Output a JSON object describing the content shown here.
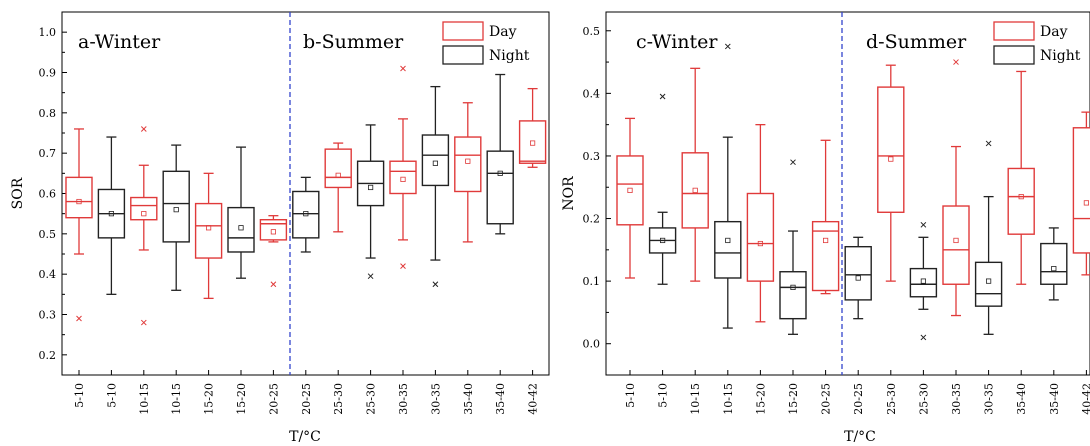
{
  "legend_labels": [
    "Day",
    "Night"
  ],
  "chart_data": [
    {
      "type": "box",
      "ylabel": "SOR",
      "xlabel": "T/°C",
      "ylim": [
        0.15,
        1.05
      ],
      "yticks": [
        "0.2",
        "0.3",
        "0.4",
        "0.5",
        "0.6",
        "0.7",
        "0.8",
        "0.9",
        "1.0"
      ],
      "panels": [
        "a-Winter",
        "b-Summer"
      ],
      "categories": [
        "5-10",
        "5-10",
        "10-15",
        "10-15",
        "15-20",
        "15-20",
        "20-25",
        "20-25",
        "25-30",
        "25-30",
        "30-35",
        "30-35",
        "35-40",
        "35-40",
        "40-42"
      ],
      "period": [
        "Day",
        "Night",
        "Day",
        "Night",
        "Day",
        "Night",
        "Day",
        "Night",
        "Day",
        "Night",
        "Day",
        "Night",
        "Day",
        "Night",
        "Day"
      ],
      "boxes": [
        {
          "min": 0.45,
          "q1": 0.54,
          "median": 0.58,
          "q3": 0.64,
          "max": 0.76,
          "mean": 0.58,
          "outliers": [
            0.29
          ]
        },
        {
          "min": 0.35,
          "q1": 0.49,
          "median": 0.55,
          "q3": 0.61,
          "max": 0.74,
          "mean": 0.55,
          "outliers": []
        },
        {
          "min": 0.46,
          "q1": 0.535,
          "median": 0.57,
          "q3": 0.59,
          "max": 0.67,
          "mean": 0.55,
          "outliers": [
            0.76,
            0.28
          ]
        },
        {
          "min": 0.36,
          "q1": 0.48,
          "median": 0.575,
          "q3": 0.655,
          "max": 0.72,
          "mean": 0.56,
          "outliers": []
        },
        {
          "min": 0.34,
          "q1": 0.44,
          "median": 0.52,
          "q3": 0.575,
          "max": 0.65,
          "mean": 0.515,
          "outliers": []
        },
        {
          "min": 0.39,
          "q1": 0.455,
          "median": 0.49,
          "q3": 0.565,
          "max": 0.715,
          "mean": 0.515,
          "outliers": []
        },
        {
          "min": 0.48,
          "q1": 0.485,
          "median": 0.525,
          "q3": 0.535,
          "max": 0.545,
          "mean": 0.505,
          "outliers": [
            0.375
          ]
        },
        {
          "min": 0.455,
          "q1": 0.49,
          "median": 0.55,
          "q3": 0.605,
          "max": 0.64,
          "mean": 0.55,
          "outliers": []
        },
        {
          "min": 0.505,
          "q1": 0.615,
          "median": 0.64,
          "q3": 0.71,
          "max": 0.725,
          "mean": 0.645,
          "outliers": []
        },
        {
          "min": 0.44,
          "q1": 0.57,
          "median": 0.625,
          "q3": 0.68,
          "max": 0.77,
          "mean": 0.615,
          "outliers": [
            0.395
          ]
        },
        {
          "min": 0.485,
          "q1": 0.6,
          "median": 0.655,
          "q3": 0.68,
          "max": 0.785,
          "mean": 0.635,
          "outliers": [
            0.91,
            0.42
          ]
        },
        {
          "min": 0.435,
          "q1": 0.62,
          "median": 0.695,
          "q3": 0.745,
          "max": 0.865,
          "mean": 0.675,
          "outliers": [
            0.375
          ]
        },
        {
          "min": 0.48,
          "q1": 0.605,
          "median": 0.695,
          "q3": 0.74,
          "max": 0.825,
          "mean": 0.68,
          "outliers": []
        },
        {
          "min": 0.5,
          "q1": 0.525,
          "median": 0.65,
          "q3": 0.705,
          "max": 0.895,
          "mean": 0.65,
          "outliers": []
        },
        {
          "min": 0.665,
          "q1": 0.675,
          "median": 0.68,
          "q3": 0.78,
          "max": 0.86,
          "mean": 0.725,
          "outliers": []
        }
      ]
    },
    {
      "type": "box",
      "ylabel": "NOR",
      "xlabel": "T/°C",
      "ylim": [
        -0.05,
        0.53
      ],
      "yticks": [
        "0.0",
        "0.1",
        "0.2",
        "0.3",
        "0.4",
        "0.5"
      ],
      "panels": [
        "c-Winter",
        "d-Summer"
      ],
      "categories": [
        "5-10",
        "5-10",
        "10-15",
        "10-15",
        "15-20",
        "15-20",
        "20-25",
        "20-25",
        "25-30",
        "25-30",
        "30-35",
        "30-35",
        "35-40",
        "35-40",
        "40-42"
      ],
      "period": [
        "Day",
        "Night",
        "Day",
        "Night",
        "Day",
        "Night",
        "Day",
        "Night",
        "Day",
        "Night",
        "Day",
        "Night",
        "Day",
        "Night",
        "Day"
      ],
      "boxes": [
        {
          "min": 0.105,
          "q1": 0.19,
          "median": 0.255,
          "q3": 0.3,
          "max": 0.36,
          "mean": 0.245,
          "outliers": []
        },
        {
          "min": 0.095,
          "q1": 0.145,
          "median": 0.165,
          "q3": 0.185,
          "max": 0.21,
          "mean": 0.165,
          "outliers": [
            0.395
          ]
        },
        {
          "min": 0.1,
          "q1": 0.185,
          "median": 0.24,
          "q3": 0.305,
          "max": 0.44,
          "mean": 0.245,
          "outliers": []
        },
        {
          "min": 0.025,
          "q1": 0.105,
          "median": 0.145,
          "q3": 0.195,
          "max": 0.33,
          "mean": 0.165,
          "outliers": [
            0.475
          ]
        },
        {
          "min": 0.035,
          "q1": 0.1,
          "median": 0.16,
          "q3": 0.24,
          "max": 0.35,
          "mean": 0.16,
          "outliers": []
        },
        {
          "min": 0.015,
          "q1": 0.04,
          "median": 0.09,
          "q3": 0.115,
          "max": 0.18,
          "mean": 0.09,
          "outliers": [
            0.29
          ]
        },
        {
          "min": 0.08,
          "q1": 0.085,
          "median": 0.18,
          "q3": 0.195,
          "max": 0.325,
          "mean": 0.165,
          "outliers": []
        },
        {
          "min": 0.04,
          "q1": 0.07,
          "median": 0.11,
          "q3": 0.155,
          "max": 0.17,
          "mean": 0.105,
          "outliers": []
        },
        {
          "min": 0.1,
          "q1": 0.21,
          "median": 0.3,
          "q3": 0.41,
          "max": 0.445,
          "mean": 0.295,
          "outliers": []
        },
        {
          "min": 0.055,
          "q1": 0.075,
          "median": 0.095,
          "q3": 0.12,
          "max": 0.17,
          "mean": 0.1,
          "outliers": [
            0.19,
            0.01
          ]
        },
        {
          "min": 0.045,
          "q1": 0.095,
          "median": 0.15,
          "q3": 0.22,
          "max": 0.315,
          "mean": 0.165,
          "outliers": [
            0.45
          ]
        },
        {
          "min": 0.015,
          "q1": 0.06,
          "median": 0.08,
          "q3": 0.13,
          "max": 0.235,
          "mean": 0.1,
          "outliers": [
            0.32
          ]
        },
        {
          "min": 0.095,
          "q1": 0.175,
          "median": 0.235,
          "q3": 0.28,
          "max": 0.435,
          "mean": 0.235,
          "outliers": []
        },
        {
          "min": 0.07,
          "q1": 0.095,
          "median": 0.115,
          "q3": 0.16,
          "max": 0.185,
          "mean": 0.12,
          "outliers": []
        },
        {
          "min": 0.11,
          "q1": 0.145,
          "median": 0.2,
          "q3": 0.345,
          "max": 0.37,
          "mean": 0.225,
          "outliers": []
        }
      ]
    }
  ]
}
